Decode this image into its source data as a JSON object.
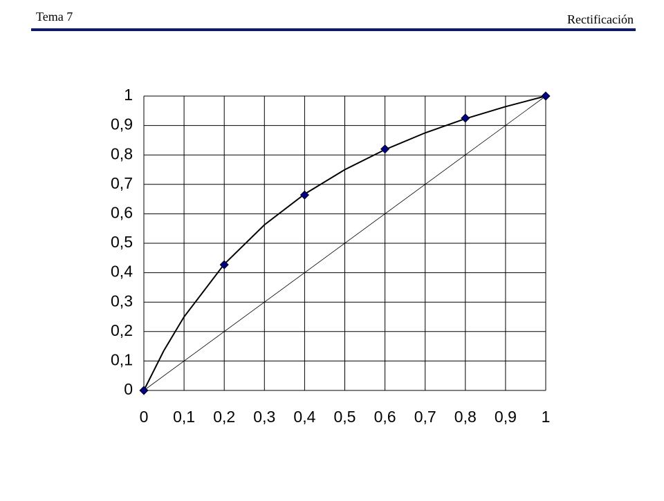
{
  "header": {
    "left": "Tema 7",
    "right": "Rectificación"
  },
  "chart_data": {
    "type": "scatter",
    "xlim": [
      0,
      1
    ],
    "ylim": [
      0,
      1
    ],
    "grid": true,
    "xticks": [
      0,
      {
        "value": 0.1,
        "label": "0,1"
      },
      {
        "value": 0.2,
        "label": "0,2"
      },
      {
        "value": 0.3,
        "label": "0,3"
      },
      {
        "value": 0.4,
        "label": "0,4"
      },
      {
        "value": 0.5,
        "label": "0,5"
      },
      {
        "value": 0.6,
        "label": "0,6"
      },
      {
        "value": 0.7,
        "label": "0,7"
      },
      {
        "value": 0.8,
        "label": "0,8"
      },
      {
        "value": 0.9,
        "label": "0,9"
      },
      1
    ],
    "yticks": [
      0,
      {
        "value": 0.1,
        "label": "0,1"
      },
      {
        "value": 0.2,
        "label": "0,2"
      },
      {
        "value": 0.3,
        "label": "0,3"
      },
      {
        "value": 0.4,
        "label": "0,4"
      },
      {
        "value": 0.5,
        "label": "0,5"
      },
      {
        "value": 0.6,
        "label": "0,6"
      },
      {
        "value": 0.7,
        "label": "0,7"
      },
      {
        "value": 0.8,
        "label": "0,8"
      },
      {
        "value": 0.9,
        "label": "0,9"
      },
      1
    ],
    "series": [
      {
        "type": "line",
        "color": "#000000",
        "width": 2,
        "x": [
          0,
          0.05,
          0.1,
          0.2,
          0.3,
          0.4,
          0.5,
          0.6,
          0.7,
          0.8,
          0.9,
          1
        ],
        "values": [
          0,
          0.136,
          0.25,
          0.429,
          0.5625,
          0.667,
          0.75,
          0.818,
          0.875,
          0.923,
          0.964,
          1
        ]
      },
      {
        "type": "line",
        "color": "#000000",
        "width": 0.8,
        "x": [
          0,
          1
        ],
        "values": [
          0,
          1
        ]
      },
      {
        "type": "scatter",
        "color": "#000080",
        "x": [
          0,
          0.2,
          0.4,
          0.6,
          0.8,
          1
        ],
        "values": [
          0,
          0.427,
          0.664,
          0.82,
          0.925,
          1
        ]
      }
    ]
  }
}
